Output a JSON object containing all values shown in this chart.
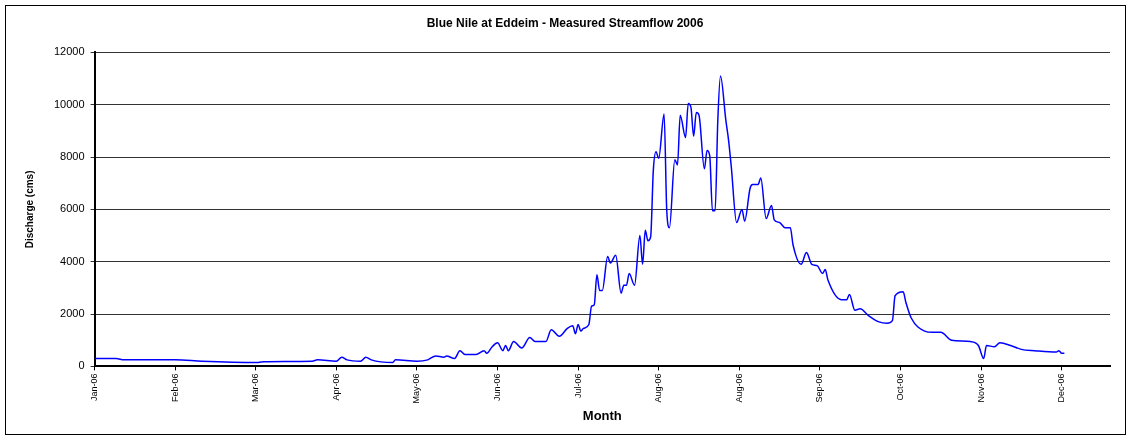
{
  "chart_data": {
    "type": "line",
    "title": "Blue Nile at Eddeim - Measured Streamflow 2006",
    "xlabel": "Month",
    "ylabel": "Discharge (cms)",
    "x": [
      "2006-01-03",
      "2006-01-11",
      "2006-01-14",
      "2006-02-02",
      "2006-02-12",
      "2006-03-05",
      "2006-03-07",
      "2006-03-25",
      "2006-03-27",
      "2006-04-03",
      "2006-04-05",
      "2006-04-07",
      "2006-04-12",
      "2006-04-14",
      "2006-04-16",
      "2006-04-24",
      "2006-04-25",
      "2006-05-03",
      "2006-05-07",
      "2006-05-10",
      "2006-05-13",
      "2006-05-14",
      "2006-05-17",
      "2006-05-19",
      "2006-05-21",
      "2006-05-25",
      "2006-05-28",
      "2006-05-29",
      "2006-05-31",
      "2006-06-02",
      "2006-06-04",
      "2006-06-05",
      "2006-06-06",
      "2006-06-08",
      "2006-06-11",
      "2006-06-14",
      "2006-06-16",
      "2006-06-20",
      "2006-06-22",
      "2006-06-25",
      "2006-06-28",
      "2006-06-30",
      "2006-07-01",
      "2006-07-02",
      "2006-07-03",
      "2006-07-04",
      "2006-07-06",
      "2006-07-07",
      "2006-07-08",
      "2006-07-09",
      "2006-07-10",
      "2006-07-11",
      "2006-07-13",
      "2006-07-14",
      "2006-07-16",
      "2006-07-18",
      "2006-07-19",
      "2006-07-20",
      "2006-07-21",
      "2006-07-23",
      "2006-07-25",
      "2006-07-26",
      "2006-07-27",
      "2006-07-28",
      "2006-07-29",
      "2006-07-30",
      "2006-07-31",
      "2006-08-01",
      "2006-08-03",
      "2006-08-04",
      "2006-08-05",
      "2006-08-07",
      "2006-08-08",
      "2006-08-09",
      "2006-08-11",
      "2006-08-12",
      "2006-08-13",
      "2006-08-14",
      "2006-08-15",
      "2006-08-16",
      "2006-08-18",
      "2006-08-19",
      "2006-08-20",
      "2006-08-21",
      "2006-08-22",
      "2006-08-23",
      "2006-08-24",
      "2006-08-26",
      "2006-08-27",
      "2006-08-28",
      "2006-08-30",
      "2006-09-01",
      "2006-09-02",
      "2006-09-04",
      "2006-09-05",
      "2006-09-07",
      "2006-09-08",
      "2006-09-10",
      "2006-09-12",
      "2006-09-13",
      "2006-09-15",
      "2006-09-17",
      "2006-09-19",
      "2006-09-20",
      "2006-09-23",
      "2006-09-25",
      "2006-09-27",
      "2006-09-29",
      "2006-10-01",
      "2006-10-02",
      "2006-10-03",
      "2006-10-08",
      "2006-10-10",
      "2006-10-11",
      "2006-10-13",
      "2006-10-15",
      "2006-10-18",
      "2006-10-22",
      "2006-10-25",
      "2006-10-27",
      "2006-10-28",
      "2006-10-31",
      "2006-11-01",
      "2006-11-03",
      "2006-11-08",
      "2006-11-11",
      "2006-11-14",
      "2006-11-18",
      "2006-11-25",
      "2006-11-28",
      "2006-11-30",
      "2006-12-01",
      "2006-12-04",
      "2006-12-06",
      "2006-12-10",
      "2006-12-14",
      "2006-12-19",
      "2006-12-27",
      "2006-12-28",
      "2006-12-29",
      "2006-12-30"
    ],
    "series": [
      {
        "color": "#0000ff",
        "values": [
          300,
          300,
          250,
          250,
          200,
          150,
          180,
          200,
          250,
          200,
          350,
          250,
          200,
          350,
          250,
          150,
          250,
          200,
          250,
          400,
          350,
          400,
          300,
          600,
          450,
          450,
          600,
          500,
          750,
          900,
          600,
          800,
          600,
          950,
          700,
          1100,
          950,
          950,
          1400,
          1150,
          1450,
          1550,
          1250,
          1600,
          1350,
          1450,
          1600,
          2300,
          2350,
          3500,
          2900,
          2900,
          4200,
          3950,
          4250,
          2800,
          3100,
          3100,
          3550,
          3100,
          5000,
          3900,
          5200,
          4800,
          4950,
          7500,
          8200,
          7950,
          9650,
          5950,
          5300,
          7900,
          7700,
          9600,
          8750,
          10050,
          9900,
          8800,
          9700,
          9600,
          7550,
          8250,
          8050,
          5950,
          5950,
          9400,
          11100,
          9400,
          8650,
          7650,
          5500,
          6000,
          5550,
          6800,
          6950,
          6950,
          7200,
          5650,
          6150,
          5600,
          5500,
          5300,
          5300,
          4650,
          3900,
          4350,
          3900,
          3850,
          3550,
          3700,
          3300,
          2550,
          2550,
          2750,
          2150,
          2200,
          1950,
          1700,
          1650,
          1750,
          2700,
          2850,
          2450,
          1850,
          1350,
          1300,
          1300,
          1000,
          950,
          800,
          300,
          800,
          750,
          900,
          800,
          650,
          600,
          550,
          600,
          500,
          500
        ]
      }
    ],
    "xlim": [
      "2006-01-03",
      "2007-01-16"
    ],
    "xticks": [
      {
        "value": "2006-01-03",
        "label": "Jan-06"
      },
      {
        "value": "2006-02-02",
        "label": "Feb-06"
      },
      {
        "value": "2006-03-04",
        "label": "Mar-06"
      },
      {
        "value": "2006-04-03",
        "label": "Apr-06"
      },
      {
        "value": "2006-05-03",
        "label": "May-06"
      },
      {
        "value": "2006-06-02",
        "label": "Jun-06"
      },
      {
        "value": "2006-07-02",
        "label": "Jul-06"
      },
      {
        "value": "2006-08-01",
        "label": "Aug-06"
      },
      {
        "value": "2006-08-31",
        "label": "Aug-06"
      },
      {
        "value": "2006-09-30",
        "label": "Sep-06"
      },
      {
        "value": "2006-10-30",
        "label": "Oct-06"
      },
      {
        "value": "2006-11-29",
        "label": "Nov-06"
      },
      {
        "value": "2006-12-29",
        "label": "Dec-06"
      }
    ],
    "ylim": [
      0,
      12000
    ],
    "yticks": [
      0,
      2000,
      4000,
      6000,
      8000,
      10000,
      12000
    ],
    "grid": "y"
  }
}
